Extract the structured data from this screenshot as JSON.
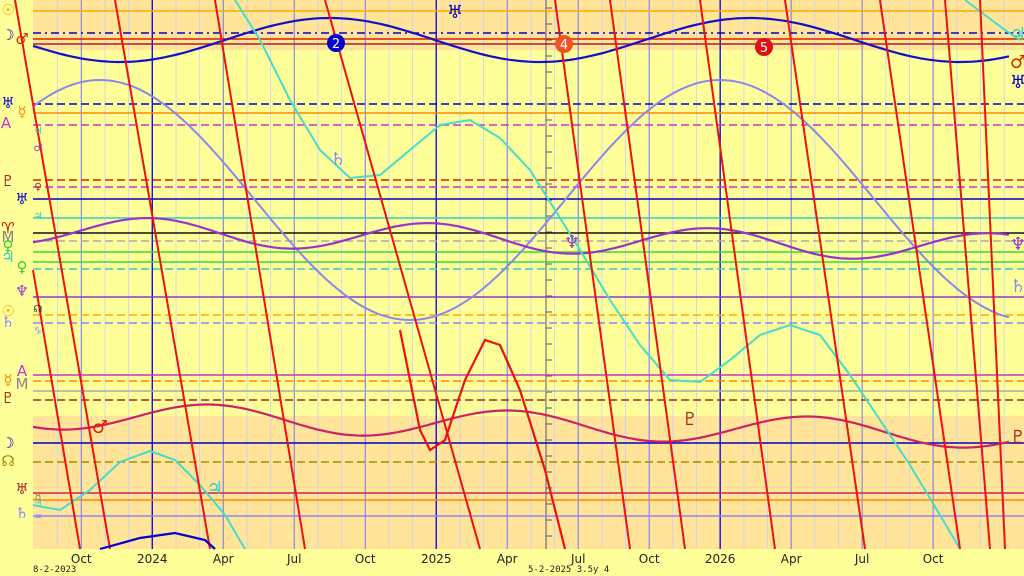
{
  "chart_data": {
    "type": "line",
    "title": "",
    "x_tick_labels": [
      "Oct",
      "2024",
      "Apr",
      "Jul",
      "Oct",
      "2025",
      "Apr",
      "Jul",
      "Oct",
      "2026",
      "Apr",
      "Jul",
      "Oct"
    ],
    "x_tick_years": [
      2023.75,
      2024.0,
      2024.25,
      2024.5,
      2024.75,
      2025.0,
      2025.25,
      2025.5,
      2025.75,
      2026.0,
      2026.25,
      2026.5,
      2026.75
    ],
    "x_range": [
      2023.58,
      2027.07
    ],
    "footer": {
      "start": "8-2-2023",
      "center": "5-2-2025  3.5y  4"
    },
    "band_colors": {
      "shade": "#ffe49a",
      "base": "#ffff99"
    },
    "left_glyphs": [
      {
        "glyph": "☉",
        "color": "#ffaa00"
      },
      {
        "glyph": "☽",
        "color": "#0000cc"
      },
      {
        "glyph": "♂",
        "color": "#dd2200"
      },
      {
        "glyph": "♅",
        "color": "#0000cc"
      },
      {
        "glyph": "☿",
        "color": "#ff8800"
      },
      {
        "glyph": "A",
        "color": "#cc33cc"
      },
      {
        "glyph": "♃",
        "color": "#33cccc"
      },
      {
        "glyph": "♂",
        "color": "#9933cc"
      },
      {
        "glyph": "♇",
        "color": "#aa2222"
      },
      {
        "glyph": "♀",
        "color": "#aa2222"
      },
      {
        "glyph": "♅",
        "color": "#0000cc"
      },
      {
        "glyph": "♃",
        "color": "#33cccc"
      },
      {
        "glyph": "♈",
        "color": "#cc0000"
      },
      {
        "glyph": "M",
        "color": "#888888"
      },
      {
        "glyph": "♀",
        "color": "#33cc33"
      },
      {
        "glyph": "♃",
        "color": "#33cccc"
      },
      {
        "glyph": "♀",
        "color": "#33cc33"
      },
      {
        "glyph": "♆",
        "color": "#9933cc"
      },
      {
        "glyph": "☊",
        "color": "#222222"
      },
      {
        "glyph": "☉",
        "color": "#ffaa00"
      },
      {
        "glyph": "♄",
        "color": "#8888ff"
      },
      {
        "glyph": "♑",
        "color": "#8888ff"
      },
      {
        "glyph": "A",
        "color": "#cc33cc"
      },
      {
        "glyph": "☿",
        "color": "#ff8800"
      },
      {
        "glyph": "M",
        "color": "#888888"
      },
      {
        "glyph": "♇",
        "color": "#aa2222"
      },
      {
        "glyph": "☽",
        "color": "#0000cc"
      },
      {
        "glyph": "☊",
        "color": "#aa8800"
      },
      {
        "glyph": "♅",
        "color": "#aa2222"
      },
      {
        "glyph": "♉",
        "color": "#cc6600"
      },
      {
        "glyph": "♃",
        "color": "#33cccc"
      },
      {
        "glyph": "♄",
        "color": "#8888ff"
      },
      {
        "glyph": "♒",
        "color": "#8888ff"
      }
    ],
    "right_glyphs": [
      {
        "glyph": "♃",
        "color": "#33cccc"
      },
      {
        "glyph": "♂",
        "color": "#dd2200"
      },
      {
        "glyph": "♅",
        "color": "#0000cc"
      },
      {
        "glyph": "♆",
        "color": "#9933cc"
      },
      {
        "glyph": "♄",
        "color": "#8888ff"
      },
      {
        "glyph": "♇",
        "color": "#aa2222"
      }
    ],
    "inline_glyphs": [
      {
        "glyph": "♅",
        "color": "#0000cc"
      },
      {
        "glyph": "♄",
        "color": "#8888ff"
      },
      {
        "glyph": "♆",
        "color": "#9933cc"
      },
      {
        "glyph": "♇",
        "color": "#aa2222"
      },
      {
        "glyph": "♂",
        "color": "#dd2200"
      },
      {
        "glyph": "♃",
        "color": "#33cccc"
      }
    ],
    "phase_markers": [
      {
        "label": "2",
        "color": "#0000cc"
      },
      {
        "label": "4",
        "color": "#ee5522"
      },
      {
        "label": "5",
        "color": "#dd1111"
      }
    ]
  }
}
